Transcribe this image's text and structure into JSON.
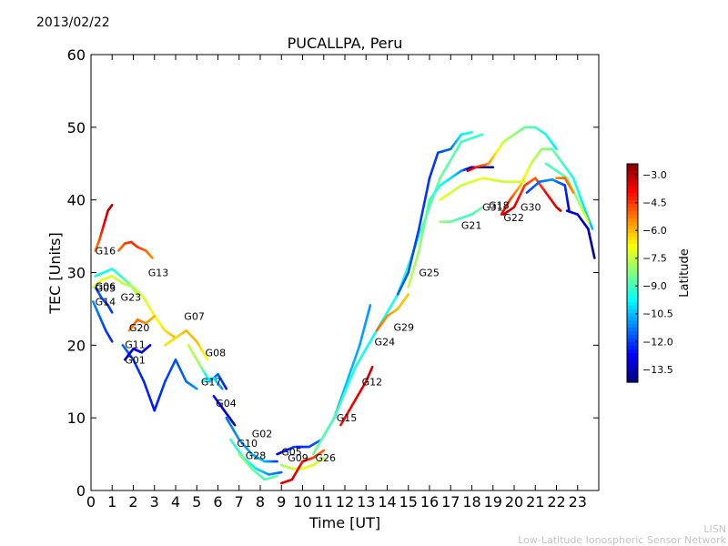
{
  "date": "2013/02/22",
  "footer": {
    "line1": "LISN",
    "line2": "Low-Latitude Ionospheric Sensor Network"
  },
  "colors": {
    "background": "#ffffff",
    "axis": "#000000"
  },
  "chart_data": {
    "type": "scatter",
    "title": "PUCALLPA, Peru",
    "xlabel": "Time [UT]",
    "ylabel": "TEC [Units]",
    "xlim": [
      0,
      24
    ],
    "ylim": [
      0,
      60
    ],
    "xticks": [
      0,
      1,
      2,
      3,
      4,
      5,
      6,
      7,
      8,
      9,
      10,
      11,
      12,
      13,
      14,
      15,
      16,
      17,
      18,
      19,
      20,
      21,
      22,
      23
    ],
    "yticks": [
      0,
      10,
      20,
      30,
      40,
      50,
      60
    ],
    "colorbar": {
      "label": "Latitude",
      "range": [
        -14.2,
        -2.4
      ],
      "ticks": [
        -3.0,
        -4.5,
        -6.0,
        -7.5,
        -9.0,
        -10.5,
        -12.0,
        -13.5
      ],
      "tick_labels": [
        "−3.0",
        "−4.5",
        "−6.0",
        "−7.5",
        "−9.0",
        "−10.5",
        "−12.0",
        "−13.5"
      ],
      "colormap": "jet (high = red, low = blue)"
    },
    "series": [
      {
        "name": "G16",
        "label_at": [
          0.2,
          33
        ],
        "points": [
          [
            0.2,
            33,
            -5.5
          ],
          [
            0.4,
            34.5,
            -4.8
          ],
          [
            0.6,
            36.5,
            -3.9
          ],
          [
            0.8,
            38.5,
            -3.2
          ],
          [
            1.0,
            39.3,
            -3.0
          ]
        ]
      },
      {
        "name": "G06",
        "label_at": [
          0.2,
          28.1
        ],
        "points": [
          [
            0.2,
            29.5,
            -9.5
          ],
          [
            0.6,
            30,
            -9.7
          ],
          [
            1.0,
            30.5,
            -9.5
          ],
          [
            1.4,
            29.5,
            -9.2
          ],
          [
            1.8,
            28.5,
            -8.5
          ],
          [
            2.2,
            27,
            -7.5
          ]
        ]
      },
      {
        "name": "G03",
        "label_at": [
          0.2,
          27.9
        ],
        "points": [
          [
            0.2,
            28,
            -11.5
          ],
          [
            0.5,
            26.5,
            -11.8
          ],
          [
            0.8,
            25.5,
            -12.2
          ],
          [
            1.0,
            24.5,
            -12.0
          ]
        ]
      },
      {
        "name": "G14",
        "label_at": [
          0.2,
          26
        ],
        "points": [
          [
            0.1,
            26,
            -11.0
          ],
          [
            0.4,
            24,
            -11.5
          ],
          [
            0.7,
            22,
            -12.0
          ],
          [
            1.0,
            20.5,
            -12.3
          ]
        ]
      },
      {
        "name": "G23",
        "label_at": [
          1.4,
          26.6
        ],
        "points": [
          [
            0.1,
            28,
            -7.5
          ],
          [
            0.5,
            29,
            -7.0
          ],
          [
            1.0,
            29.5,
            -7.2
          ],
          [
            1.5,
            28.5,
            -7.5
          ],
          [
            2.0,
            28,
            -7.8
          ],
          [
            2.5,
            26.5,
            -7.3
          ],
          [
            3.0,
            24,
            -7.0
          ],
          [
            3.5,
            22,
            -6.5
          ],
          [
            4.0,
            21,
            -6.0
          ]
        ]
      },
      {
        "name": "G13",
        "label_at": [
          2.7,
          30
        ],
        "points": [
          [
            1.3,
            33,
            -5.2
          ],
          [
            1.6,
            34,
            -4.8
          ],
          [
            1.9,
            34.2,
            -4.3
          ],
          [
            2.2,
            33.5,
            -4.5
          ],
          [
            2.6,
            33,
            -5.0
          ],
          [
            2.9,
            32,
            -5.5
          ]
        ]
      },
      {
        "name": "G20",
        "label_at": [
          1.8,
          22.4
        ],
        "points": [
          [
            1.8,
            22,
            -5.5
          ],
          [
            2.2,
            23.5,
            -5.0
          ],
          [
            2.6,
            23,
            -5.5
          ],
          [
            3.0,
            24,
            -6.0
          ]
        ]
      },
      {
        "name": "G07",
        "label_at": [
          4.4,
          24
        ],
        "points": [
          [
            3.5,
            20,
            -6.5
          ],
          [
            4.0,
            21,
            -6.5
          ],
          [
            4.5,
            22,
            -6.0
          ],
          [
            5.0,
            20.5,
            -6.0
          ],
          [
            5.5,
            18,
            -7.0
          ]
        ]
      },
      {
        "name": "G11",
        "label_at": [
          1.6,
          20.1
        ],
        "points": [
          [
            1.5,
            20,
            -11.5
          ],
          [
            2.0,
            18,
            -12.0
          ],
          [
            2.5,
            15,
            -12.3
          ],
          [
            3.0,
            11,
            -12.5
          ],
          [
            3.5,
            15,
            -12.0
          ],
          [
            4.0,
            18,
            -11.8
          ],
          [
            4.5,
            15,
            -11.5
          ],
          [
            5.0,
            14,
            -11.0
          ]
        ]
      },
      {
        "name": "G01",
        "label_at": [
          1.6,
          18
        ],
        "points": [
          [
            1.6,
            18,
            -12.5
          ],
          [
            2.0,
            19.5,
            -13.0
          ],
          [
            2.4,
            19,
            -13.2
          ],
          [
            2.8,
            20,
            -12.8
          ]
        ]
      },
      {
        "name": "G08",
        "label_at": [
          5.4,
          19
        ],
        "points": [
          [
            4.6,
            20,
            -7.5
          ],
          [
            5.2,
            17,
            -8.0
          ],
          [
            5.6,
            15,
            -10.5
          ],
          [
            6.0,
            16,
            -11.5
          ],
          [
            6.4,
            14,
            -12.5
          ]
        ]
      },
      {
        "name": "G17",
        "label_at": [
          5.2,
          15
        ],
        "points": [
          [
            5.3,
            15,
            -9.5
          ],
          [
            5.8,
            15.5,
            -10.0
          ],
          [
            6.2,
            14,
            -11.0
          ]
        ]
      },
      {
        "name": "G04",
        "label_at": [
          5.9,
          12
        ],
        "points": [
          [
            5.8,
            13,
            -12.5
          ],
          [
            6.3,
            11,
            -13.0
          ],
          [
            6.8,
            9,
            -13.5
          ]
        ]
      },
      {
        "name": "G02",
        "label_at": [
          7.6,
          7.8
        ],
        "points": [
          [
            6.4,
            10,
            -11.5
          ],
          [
            7.0,
            7,
            -11.0
          ],
          [
            7.6,
            5,
            -10.8
          ],
          [
            8.2,
            4,
            -10.5
          ],
          [
            8.8,
            4,
            -12.0
          ]
        ]
      },
      {
        "name": "G10",
        "label_at": [
          6.9,
          6.5
        ],
        "points": [
          [
            6.6,
            7,
            -9.0
          ],
          [
            7.2,
            4.5,
            -9.5
          ],
          [
            7.8,
            3,
            -10.0
          ],
          [
            8.4,
            2.2,
            -11.0
          ],
          [
            9.0,
            2.5,
            -11.5
          ]
        ]
      },
      {
        "name": "G28",
        "label_at": [
          7.3,
          4.8
        ],
        "points": [
          [
            7.0,
            5,
            -8.0
          ],
          [
            7.6,
            3,
            -8.5
          ],
          [
            8.2,
            1.5,
            -9.0
          ],
          [
            8.8,
            2,
            -8.5
          ]
        ]
      },
      {
        "name": "G05",
        "label_at": [
          9.0,
          5.3
        ],
        "points": [
          [
            8.8,
            5,
            -13.0
          ],
          [
            9.2,
            5.5,
            -12.5
          ],
          [
            9.6,
            6,
            -12.0
          ]
        ]
      },
      {
        "name": "G09",
        "label_at": [
          9.3,
          4.5
        ],
        "points": [
          [
            9.0,
            3.5,
            -8.0
          ],
          [
            9.5,
            3,
            -7.5
          ],
          [
            10.0,
            3,
            -7.0
          ],
          [
            10.5,
            3.5,
            -7.2
          ],
          [
            11.0,
            4.5,
            -7.5
          ]
        ]
      },
      {
        "name": "G26",
        "label_at": [
          10.6,
          4.5
        ],
        "points": [
          [
            9.0,
            1,
            -3.5
          ],
          [
            9.5,
            1.5,
            -3.5
          ],
          [
            10.0,
            4,
            -4.0
          ],
          [
            10.5,
            4.5,
            -4.5
          ],
          [
            11.0,
            5.5,
            -5.0
          ]
        ]
      },
      {
        "name": "G15",
        "label_at": [
          11.6,
          10
        ],
        "points": [
          [
            9.7,
            6,
            -12.5
          ],
          [
            10.3,
            6,
            -12.0
          ],
          [
            10.9,
            7,
            -11.5
          ],
          [
            11.5,
            10,
            -11.0
          ],
          [
            12.1,
            15,
            -10.5
          ],
          [
            12.7,
            20,
            -10.8
          ],
          [
            13.2,
            25.5,
            -11.0
          ]
        ]
      },
      {
        "name": "G12",
        "label_at": [
          12.8,
          15
        ],
        "points": [
          [
            11.8,
            9,
            -4.0
          ],
          [
            12.4,
            12,
            -3.8
          ],
          [
            13.0,
            15,
            -3.5
          ],
          [
            13.3,
            17,
            -3.3
          ]
        ]
      },
      {
        "name": "G24",
        "label_at": [
          13.4,
          20.5
        ],
        "points": [
          [
            10.5,
            5,
            -8.5
          ],
          [
            11.5,
            10,
            -9.0
          ],
          [
            12.5,
            17,
            -9.5
          ],
          [
            13.5,
            22,
            -9.8
          ],
          [
            14.5,
            27,
            -9.5
          ],
          [
            15.5,
            35,
            -9.0
          ],
          [
            16.5,
            43,
            -8.5
          ],
          [
            17.5,
            48,
            -9.0
          ],
          [
            18.5,
            49,
            -9.2
          ]
        ]
      },
      {
        "name": "G29",
        "label_at": [
          14.3,
          22.5
        ],
        "points": [
          [
            13.5,
            22,
            -5.0
          ],
          [
            14.0,
            24,
            -5.5
          ],
          [
            14.5,
            25,
            -6.0
          ],
          [
            15.0,
            27,
            -6.2
          ]
        ]
      },
      {
        "name": "G25",
        "label_at": [
          15.5,
          30
        ],
        "points": [
          [
            15.0,
            28,
            -7.5
          ],
          [
            15.5,
            33,
            -8.0
          ],
          [
            16.0,
            40,
            -9.0
          ],
          [
            16.5,
            42,
            -9.5
          ],
          [
            17.0,
            43,
            -10.0
          ],
          [
            17.5,
            44,
            -11.0
          ],
          [
            18.0,
            44.5,
            -13.5
          ],
          [
            19.0,
            44.5,
            -14.0
          ]
        ]
      },
      {
        "name": "G21",
        "label_at": [
          17.5,
          36.5
        ],
        "points": [
          [
            16.5,
            37,
            -8.0
          ],
          [
            17.0,
            37,
            -8.5
          ],
          [
            17.5,
            37.5,
            -9.0
          ],
          [
            18.0,
            38,
            -9.0
          ],
          [
            18.5,
            39,
            -8.5
          ]
        ]
      },
      {
        "name": "G31",
        "label_at": [
          18.5,
          39
        ],
        "points": [
          [
            14.5,
            27,
            -11.5
          ],
          [
            15.0,
            30,
            -11.8
          ],
          [
            15.5,
            36,
            -12.0
          ],
          [
            16.0,
            43,
            -12.2
          ],
          [
            16.4,
            46.5,
            -12.0
          ],
          [
            17.0,
            47,
            -11.5
          ],
          [
            17.5,
            49,
            -10.0
          ],
          [
            18.0,
            49.3,
            -9.5
          ]
        ]
      },
      {
        "name": "G18",
        "label_at": [
          18.8,
          39.3
        ],
        "points": [
          [
            17.8,
            44,
            -3.0
          ],
          [
            18.2,
            44.5,
            -4.0
          ],
          [
            18.8,
            45,
            -5.5
          ],
          [
            19.5,
            48,
            -7.5
          ],
          [
            20.0,
            49,
            -8.0
          ],
          [
            20.5,
            50,
            -8.5
          ],
          [
            21.0,
            50,
            -9.0
          ],
          [
            21.5,
            49,
            -9.5
          ],
          [
            22.0,
            47,
            -10.0
          ]
        ]
      },
      {
        "name": "G30",
        "label_at": [
          20.3,
          39
        ],
        "points": [
          [
            19.5,
            38,
            -3.0
          ],
          [
            20.0,
            39,
            -3.5
          ],
          [
            20.5,
            42,
            -4.5
          ],
          [
            21.0,
            43,
            -5.0
          ],
          [
            21.5,
            41,
            -4.0
          ],
          [
            22.0,
            39,
            -3.5
          ],
          [
            22.2,
            38.5,
            -3.2
          ]
        ]
      },
      {
        "name": "G22",
        "label_at": [
          19.5,
          37.6
        ],
        "points": [
          [
            19.4,
            38,
            -3.5
          ],
          [
            19.8,
            40,
            -4.5
          ],
          [
            20.3,
            42,
            -6.0
          ],
          [
            20.8,
            45,
            -7.5
          ],
          [
            21.3,
            47,
            -8.0
          ],
          [
            21.8,
            47,
            -8.5
          ],
          [
            22.3,
            45,
            -9.0
          ],
          [
            22.8,
            43,
            -9.5
          ],
          [
            23.3,
            39,
            -10.0
          ],
          [
            23.7,
            36,
            -10.5
          ]
        ]
      }
    ],
    "extra_traces": [
      {
        "points": [
          [
            20.6,
            41,
            -12.0
          ],
          [
            21.2,
            42.5,
            -11.5
          ],
          [
            21.8,
            42.8,
            -11.0
          ],
          [
            22.4,
            42,
            -12.0
          ],
          [
            22.6,
            38.5,
            -13.0
          ]
        ]
      },
      {
        "points": [
          [
            22.5,
            38.5,
            -13.5
          ],
          [
            23.0,
            38,
            -13.0
          ],
          [
            23.5,
            36,
            -13.5
          ],
          [
            23.8,
            32,
            -14.0
          ]
        ]
      },
      {
        "points": [
          [
            21.5,
            45,
            -8.8
          ],
          [
            22.0,
            44,
            -9.0
          ],
          [
            22.5,
            43,
            -8.5
          ],
          [
            23.0,
            40,
            -8.0
          ],
          [
            23.5,
            37,
            -7.0
          ]
        ]
      },
      {
        "points": [
          [
            22.0,
            43,
            -5.5
          ],
          [
            22.4,
            43,
            -5.0
          ],
          [
            22.8,
            41,
            -5.5
          ]
        ]
      },
      {
        "points": [
          [
            16.5,
            40,
            -7.0
          ],
          [
            17.5,
            42,
            -7.5
          ],
          [
            18.5,
            43,
            -7.0
          ],
          [
            19.5,
            42.5,
            -7.5
          ],
          [
            20.5,
            42.5,
            -7.2
          ]
        ]
      }
    ]
  }
}
